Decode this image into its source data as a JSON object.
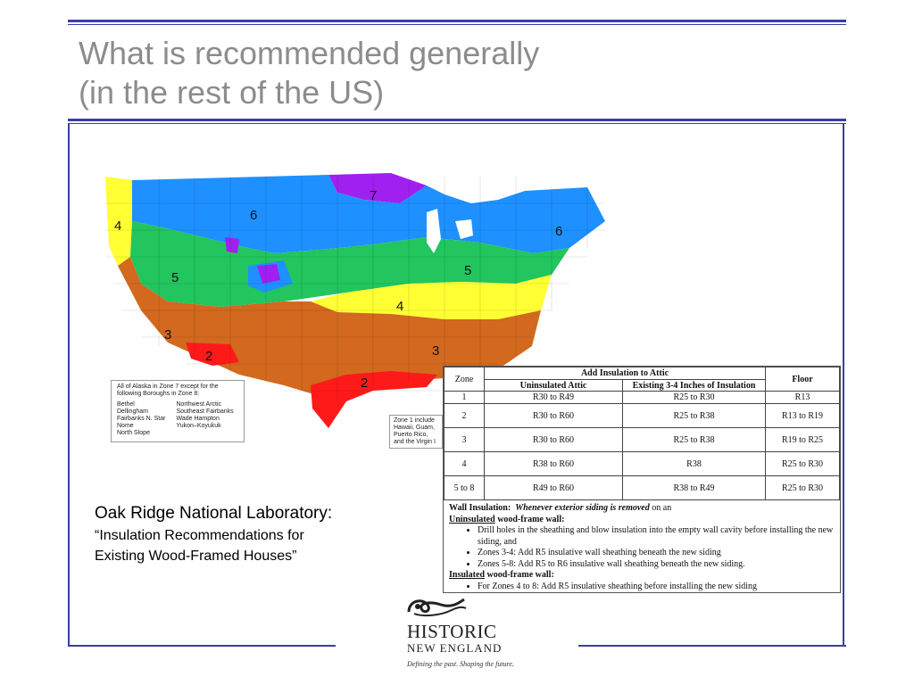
{
  "slide": {
    "title_line1": "What is recommended generally",
    "title_line2": "(in the rest of the US)"
  },
  "map": {
    "zone_labels": [
      "7",
      "6",
      "6",
      "4",
      "5",
      "5",
      "4",
      "3",
      "3",
      "2",
      "2"
    ],
    "alaska_note": {
      "intro": "All of Alaska in Zone 7 except for the following Boroughs in Zone 8:",
      "col1": [
        "Bethel",
        "Dellingham",
        "Fairbanks N. Star",
        "Nome",
        "North Slope"
      ],
      "col2": [
        "Northwest Arctic",
        "Southeast Fairbanks",
        "Wade Hampton",
        "Yukon–Koyukuk"
      ]
    },
    "zone1_note": [
      "Zone 1 include",
      "Hawaii, Guam,",
      "Puerto Rico,",
      "and the Virgin I"
    ],
    "colors": {
      "z2": "#ff1a1a",
      "z3": "#d2691e",
      "z4": "#ffff33",
      "z5": "#22c55e",
      "z6": "#1e90ff",
      "z7": "#a020f0"
    }
  },
  "citation": {
    "heading": "Oak Ridge National Laboratory:",
    "line1": "“Insulation Recommendations for",
    "line2": "Existing Wood-Framed Houses”"
  },
  "table": {
    "zone_header": "Zone",
    "attic_header": "Add Insulation to Attic",
    "uninsulated_header": "Uninsulated Attic",
    "existing_header": "Existing 3-4 Inches of Insulation",
    "floor_header": "Floor",
    "rows": [
      {
        "zone": "1",
        "uninsulated": "R30 to R49",
        "existing": "R25 to R30",
        "floor": "R13"
      },
      {
        "zone": "2",
        "uninsulated": "R30 to R60",
        "existing": "R25 to R38",
        "floor": "R13 to R19"
      },
      {
        "zone": "3",
        "uninsulated": "R30 to R60",
        "existing": "R25 to R38",
        "floor": "R19 to R25"
      },
      {
        "zone": "4",
        "uninsulated": "R38 to R60",
        "existing": "R38",
        "floor": "R25 to R30"
      },
      {
        "zone": "5 to 8",
        "uninsulated": "R49 to R60",
        "existing": "R38 to R49",
        "floor": "R25 to R30"
      }
    ]
  },
  "wall": {
    "label": "Wall Insulation:",
    "condition": "Whenever exterior siding is removed",
    "condition_tail": " on an",
    "uninsulated_word": "Uninsulated",
    "uninsulated_rest": " wood-frame wall:",
    "bullets": [
      "Drill holes in the sheathing and blow insulation into the empty wall cavity before installing the new siding, and",
      "Zones 3-4: Add R5 insulative wall sheathing beneath the new siding",
      "Zones 5-8: Add R5 to R6 insulative wall sheathing beneath the new siding."
    ],
    "insulated_word": "Insulated",
    "insulated_rest": " wood-frame wall:",
    "insulated_bullets": [
      "For Zones 4 to 8: Add R5 insulative sheathing before installing the new siding"
    ]
  },
  "logo": {
    "line1": "HISTORIC",
    "line2": "NEW ENGLAND",
    "tagline": "Defining the past. Shaping the future."
  }
}
